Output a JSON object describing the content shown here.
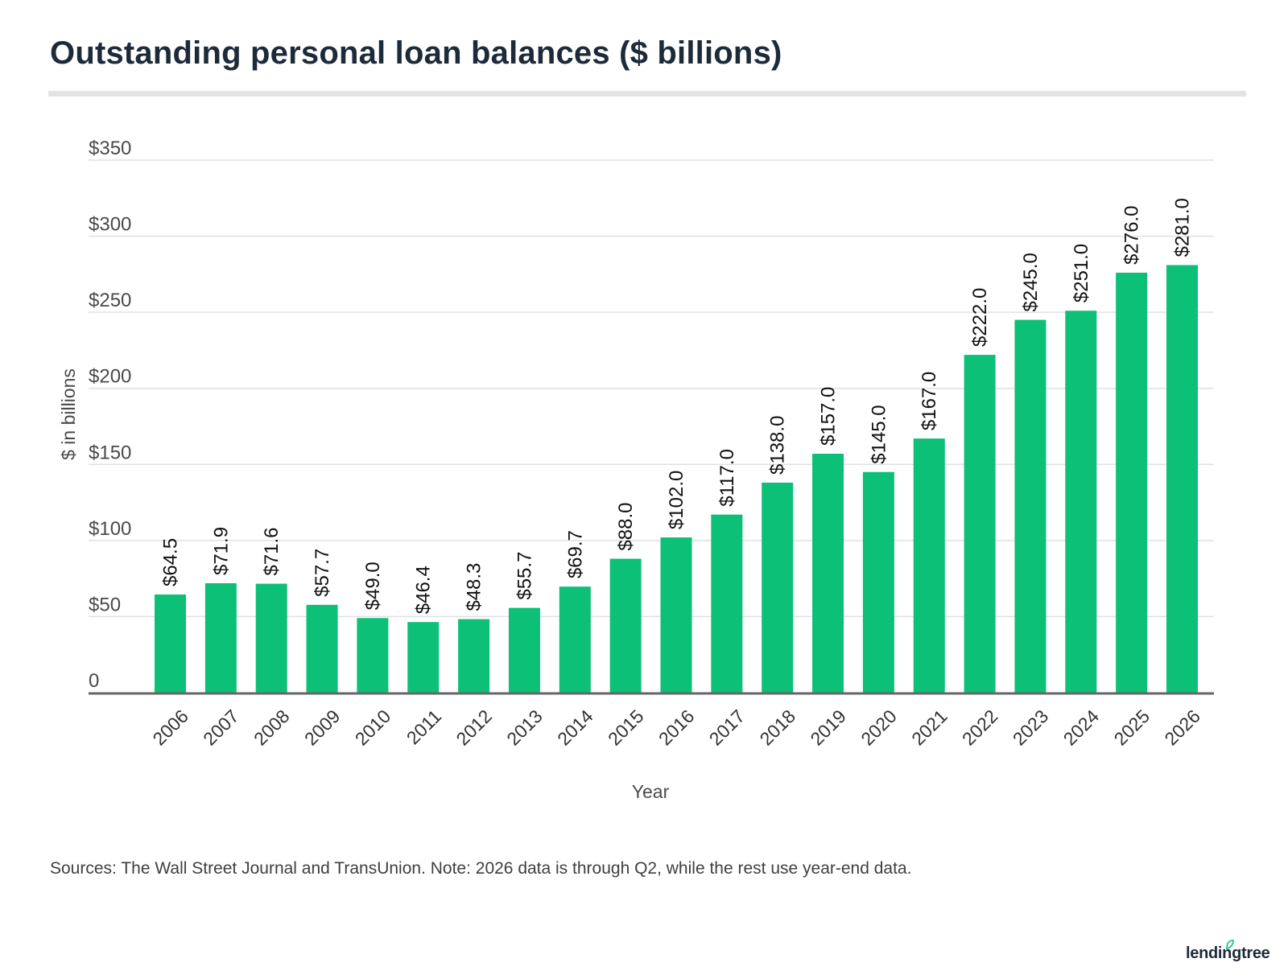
{
  "header": {
    "title": "Outstanding personal loan balances ($ billions)"
  },
  "chart_data": {
    "type": "bar",
    "categories": [
      "2006",
      "2007",
      "2008",
      "2009",
      "2010",
      "2011",
      "2012",
      "2013",
      "2014",
      "2015",
      "2016",
      "2017",
      "2018",
      "2019",
      "2020",
      "2021",
      "2022",
      "2023",
      "2024",
      "2025",
      "2026"
    ],
    "values": [
      64.5,
      71.9,
      71.6,
      57.7,
      49.0,
      46.4,
      48.3,
      55.7,
      69.7,
      88.0,
      102.0,
      117.0,
      138.0,
      157.0,
      145.0,
      167.0,
      222.0,
      245.0,
      251.0,
      276.0,
      281.0
    ],
    "value_labels": [
      "$64.5",
      "$71.9",
      "$71.6",
      "$57.7",
      "$49.0",
      "$46.4",
      "$48.3",
      "$55.7",
      "$69.7",
      "$88.0",
      "$102.0",
      "$117.0",
      "$138.0",
      "$157.0",
      "$145.0",
      "$167.0",
      "$222.0",
      "$245.0",
      "$251.0",
      "$276.0",
      "$281.0"
    ],
    "title": "Outstanding personal loan balances ($ billions)",
    "xlabel": "Year",
    "ylabel": "$ in billions",
    "ylim": [
      0,
      350
    ],
    "yticks": [
      0,
      50,
      100,
      150,
      200,
      250,
      300,
      350
    ],
    "ytick_labels": [
      "0",
      "$50",
      "$100",
      "$150",
      "$200",
      "$250",
      "$300",
      "$350"
    ],
    "grid": true,
    "legend": "none",
    "bar_color": "#0cc078"
  },
  "footer": {
    "sources": "Sources: The Wall Street Journal and TransUnion. Note: 2026 data is through Q2, while the rest use year-end data.",
    "logo_text": "lendingtree"
  },
  "colors": {
    "bar": "#0cc078",
    "title": "#1d2a3a",
    "gridline": "#e0e0e0",
    "axis": "#666666"
  }
}
